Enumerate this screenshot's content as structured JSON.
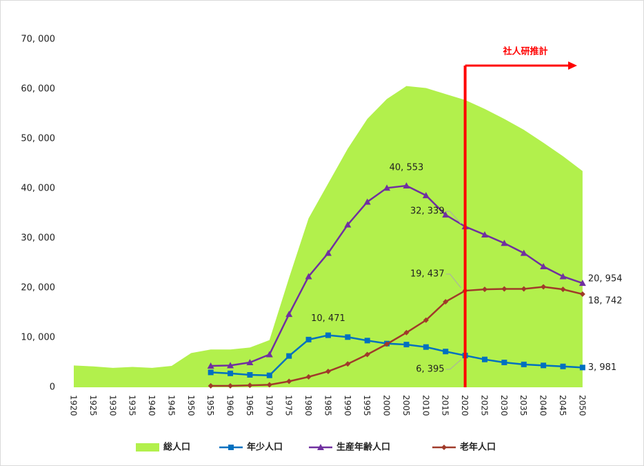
{
  "chart_data": {
    "type": "area-line",
    "categories": [
      "1920",
      "1925",
      "1930",
      "1935",
      "1940",
      "1945",
      "1950",
      "1955",
      "1960",
      "1965",
      "1970",
      "1975",
      "1980",
      "1985",
      "1990",
      "1995",
      "2000",
      "2005",
      "2010",
      "2015",
      "2020",
      "2025",
      "2030",
      "2035",
      "2040",
      "2045",
      "2050"
    ],
    "ylim": [
      0,
      70000
    ],
    "yticks": [
      0,
      {
        "value": 10000,
        "label": "10, 000"
      },
      {
        "value": 20000,
        "label": "20, 000"
      },
      {
        "value": 30000,
        "label": "30, 000"
      },
      {
        "value": 40000,
        "label": "40, 000"
      },
      {
        "value": 50000,
        "label": "50, 000"
      },
      {
        "value": 60000,
        "label": "60, 000"
      },
      {
        "value": 70000,
        "label": "70, 000"
      }
    ],
    "series": [
      {
        "name": "総人口",
        "kind": "area",
        "color": "#b2f04c",
        "values": [
          4400,
          4200,
          3900,
          4100,
          3900,
          4300,
          6900,
          7600,
          7600,
          8000,
          9500,
          22000,
          34000,
          41000,
          48000,
          54000,
          58000,
          60600,
          60200,
          59000,
          57800,
          56000,
          54000,
          51800,
          49200,
          46500,
          43500
        ]
      },
      {
        "name": "年少人口",
        "kind": "line",
        "marker": "square",
        "color": "#0070c0",
        "values": [
          null,
          null,
          null,
          null,
          null,
          null,
          null,
          3000,
          2800,
          2500,
          2400,
          6300,
          9600,
          10471,
          10100,
          9400,
          8800,
          8600,
          8100,
          7200,
          6395,
          5600,
          5000,
          4600,
          4400,
          4200,
          3981
        ],
        "value_labels": [
          null,
          null,
          null,
          null,
          null,
          null,
          null,
          null,
          null,
          null,
          null,
          null,
          null,
          "10, 471",
          null,
          null,
          null,
          null,
          null,
          null,
          "6, 395",
          null,
          null,
          null,
          null,
          null,
          "3, 981"
        ]
      },
      {
        "name": "生産年齢人口",
        "kind": "line",
        "marker": "triangle",
        "color": "#7030a0",
        "values": [
          null,
          null,
          null,
          null,
          null,
          null,
          null,
          4300,
          4400,
          5000,
          6600,
          14700,
          22300,
          27000,
          32700,
          37300,
          40100,
          40553,
          38600,
          34700,
          32339,
          30700,
          29000,
          27000,
          24300,
          22300,
          20954
        ],
        "value_labels": [
          null,
          null,
          null,
          null,
          null,
          null,
          null,
          null,
          null,
          null,
          null,
          null,
          null,
          null,
          null,
          null,
          null,
          "40, 553",
          null,
          null,
          "32, 339",
          null,
          null,
          null,
          null,
          null,
          "20, 954"
        ]
      },
      {
        "name": "老年人口",
        "kind": "line",
        "marker": "diamond",
        "color": "#a03a2a",
        "values": [
          null,
          null,
          null,
          null,
          null,
          null,
          null,
          300,
          300,
          400,
          500,
          1200,
          2100,
          3200,
          4700,
          6600,
          8700,
          11000,
          13500,
          17200,
          19437,
          19700,
          19800,
          19800,
          20200,
          19700,
          18742
        ],
        "value_labels": [
          null,
          null,
          null,
          null,
          null,
          null,
          null,
          null,
          null,
          null,
          null,
          null,
          null,
          null,
          null,
          null,
          null,
          null,
          null,
          null,
          "19, 437",
          null,
          null,
          null,
          null,
          null,
          "18, 742"
        ]
      }
    ],
    "annotation": {
      "text": "社人研推計",
      "x": "2020",
      "color": "#ff0000"
    },
    "legend": "bottom"
  }
}
